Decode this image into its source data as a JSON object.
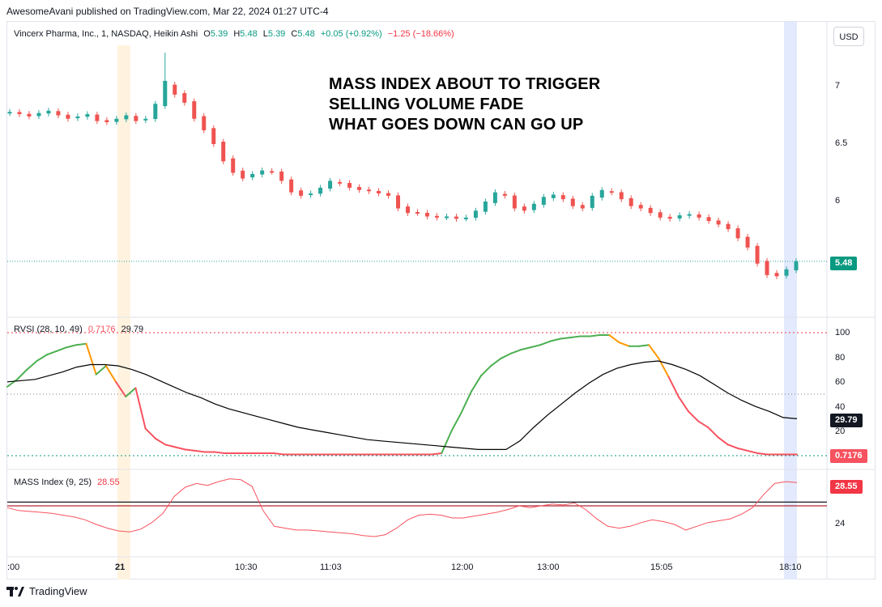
{
  "publish_line": "AwesomeAvani published on TradingView.com, Mar 22, 2024 01:27 UTC-4",
  "main_legend": {
    "symbol": "Vincerx Pharma, Inc., 1, NASDAQ, Heikin Ashi",
    "open_label": "O",
    "open": "5.39",
    "high_label": "H",
    "high": "5.48",
    "low_label": "L",
    "low": "5.39",
    "close_label": "C",
    "close": "5.48",
    "change": "+0.05 (+0.92%)",
    "change2": "−1.25 (−18.66%)"
  },
  "annotation": [
    "MASS INDEX ABOUT TO TRIGGER",
    "SELLING VOLUME FADE",
    "WHAT GOES DOWN CAN GO  UP"
  ],
  "currency_button": "USD",
  "footer_brand": "TradingView",
  "colors": {
    "up": "#26a69a",
    "down": "#ef5350",
    "rvsi_green": "#4caf50",
    "rvsi_orange": "#ff9800",
    "rvsi_red": "#f7525f",
    "rvsi_blue": "#2196f3",
    "signal": "#000000",
    "mass": "#f7525f",
    "price_tag": "#089981",
    "level_red": "#b22833",
    "level_navy": "#131722",
    "highlight_orange": "#fff3e0",
    "highlight_blue": "#e3eafd"
  },
  "chart_data": [
    {
      "type": "candlestick",
      "title": "Vincerx Pharma, Inc., 1, NASDAQ, Heikin Ashi",
      "style": "Heikin Ashi",
      "y_ticks": [
        7.0,
        6.5,
        6.0
      ],
      "last_price": "5.48",
      "x_ticks": [
        ":00",
        "21",
        "10:30",
        "11:03",
        "12:00",
        "13:00",
        "15:05",
        "18:10"
      ],
      "close_path": [
        6.78,
        6.76,
        6.74,
        6.77,
        6.79,
        6.75,
        6.72,
        6.74,
        6.76,
        6.7,
        6.69,
        6.72,
        6.75,
        6.7,
        6.72,
        6.85,
        7.05,
        6.93,
        6.86,
        6.72,
        6.62,
        6.5,
        6.35,
        6.25,
        6.2,
        6.24,
        6.27,
        6.26,
        6.18,
        6.08,
        6.05,
        6.07,
        6.12,
        6.18,
        6.16,
        6.12,
        6.1,
        6.09,
        6.07,
        6.05,
        5.94,
        5.9,
        5.9,
        5.87,
        5.86,
        5.87,
        5.85,
        5.86,
        5.92,
        6.0,
        6.08,
        6.05,
        5.94,
        5.92,
        5.98,
        6.04,
        6.06,
        6.02,
        5.96,
        5.94,
        6.05,
        6.1,
        6.08,
        6.02,
        5.96,
        5.94,
        5.9,
        5.86,
        5.85,
        5.88,
        5.89,
        5.86,
        5.83,
        5.8,
        5.76,
        5.68,
        5.6,
        5.46,
        5.36,
        5.35,
        5.41,
        5.48
      ]
    },
    {
      "type": "line",
      "title": "RVSI (28, 10, 49)",
      "series_values": {
        "rvsi": "0.7176",
        "signal": "29.79"
      },
      "y_ticks": [
        100.0,
        80.0,
        60.0,
        40.0,
        20.0
      ],
      "levels": [
        100,
        50,
        0
      ],
      "rvsi": [
        56,
        62,
        70,
        77,
        82,
        85,
        88,
        90,
        91,
        66,
        73,
        60,
        48,
        55,
        22,
        14,
        9,
        7,
        5,
        4,
        3,
        3,
        2,
        2,
        2,
        2,
        2,
        2,
        1,
        1,
        1,
        1,
        1,
        1,
        1,
        1,
        1,
        1,
        1,
        1,
        1,
        1,
        1,
        1,
        2,
        20,
        35,
        52,
        65,
        73,
        79,
        83,
        86,
        88,
        90,
        93,
        95,
        96,
        97,
        97,
        98,
        98,
        92,
        89,
        89,
        90,
        79,
        64,
        48,
        36,
        28,
        23,
        15,
        9,
        6,
        4,
        2,
        1,
        1,
        1,
        1
      ],
      "signal": [
        60,
        61,
        62,
        65,
        68,
        72,
        74,
        74,
        73,
        70,
        66,
        61,
        56,
        51,
        47,
        42,
        38,
        35,
        32,
        29,
        26,
        23,
        21,
        19,
        17,
        15,
        13,
        12,
        11,
        10,
        9,
        8,
        7,
        6,
        5,
        5,
        5,
        12,
        23,
        33,
        42,
        51,
        59,
        66,
        71,
        74,
        76,
        77,
        74,
        70,
        65,
        58,
        51,
        45,
        40,
        36,
        31,
        30
      ]
    },
    {
      "type": "line",
      "title": "MASS Index (9, 25)",
      "value": "28.55",
      "y_ticks": [
        24.0
      ],
      "levels": [
        26.4,
        26.0
      ],
      "values": [
        25.8,
        25.5,
        25.4,
        25.3,
        25.2,
        25.0,
        24.8,
        24.5,
        24.0,
        23.6,
        23.3,
        23.2,
        23.5,
        24.2,
        25.2,
        27.0,
        28.0,
        28.4,
        28.2,
        28.6,
        28.9,
        28.8,
        28.1,
        25.5,
        23.8,
        23.6,
        23.4,
        23.4,
        23.3,
        23.2,
        23.1,
        23.0,
        22.8,
        22.7,
        22.9,
        23.6,
        24.5,
        25.0,
        25.1,
        25.0,
        24.7,
        24.7,
        24.9,
        25.1,
        25.3,
        25.6,
        26.0,
        25.8,
        26.0,
        26.2,
        26.1,
        26.3,
        25.6,
        24.6,
        23.8,
        23.6,
        23.8,
        24.2,
        24.5,
        24.3,
        24.0,
        23.4,
        23.8,
        24.2,
        24.4,
        24.6,
        25.1,
        25.8,
        27.2,
        28.4,
        28.6,
        28.5
      ]
    }
  ]
}
